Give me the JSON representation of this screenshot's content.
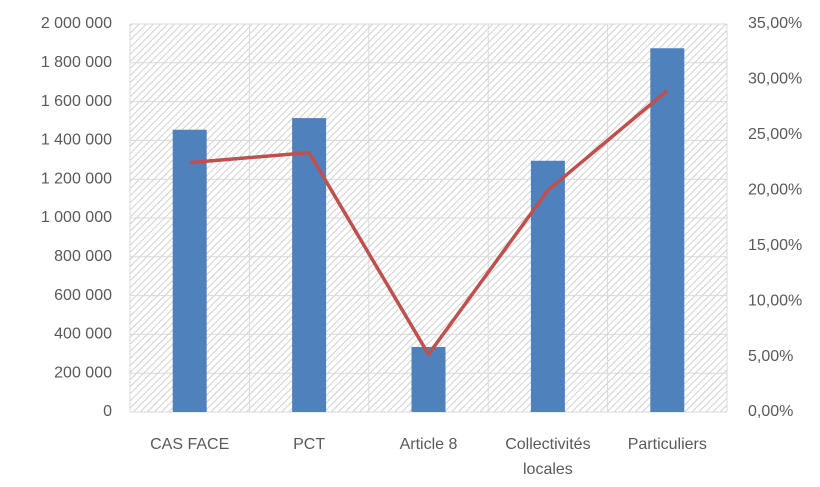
{
  "chart_data": {
    "type": "bar",
    "categories": [
      "CAS FACE",
      "PCT",
      "Article 8",
      "Collectivités locales",
      "Particuliers"
    ],
    "series": [
      {
        "type": "bar",
        "color": "#4f81bd",
        "values": [
          1455000,
          1515000,
          335000,
          1295000,
          1875000
        ]
      },
      {
        "type": "line",
        "axis": "y2",
        "color": "#c0504d",
        "values": [
          22.5,
          23.4,
          5.2,
          20.0,
          29.0
        ]
      }
    ],
    "ylim": [
      0,
      2000000
    ],
    "yticks": [
      0,
      {
        "value": 200000,
        "label": "200 000"
      },
      {
        "value": 400000,
        "label": "400 000"
      },
      {
        "value": 600000,
        "label": "600 000"
      },
      {
        "value": 800000,
        "label": "800 000"
      },
      {
        "value": 1000000,
        "label": "1 000 000"
      },
      {
        "value": 1200000,
        "label": "1 200 000"
      },
      {
        "value": 1400000,
        "label": "1 400 000"
      },
      {
        "value": 1600000,
        "label": "1 600 000"
      },
      {
        "value": 1800000,
        "label": "1 800 000"
      },
      {
        "value": 2000000,
        "label": "2 000 000"
      }
    ],
    "y2lim": [
      0,
      35
    ],
    "y2ticks": [
      {
        "value": 0,
        "label": "0,00%"
      },
      {
        "value": 5,
        "label": "5,00%"
      },
      {
        "value": 10,
        "label": "10,00%"
      },
      {
        "value": 15,
        "label": "15,00%"
      },
      {
        "value": 20,
        "label": "20,00%"
      },
      {
        "value": 25,
        "label": "25,00%"
      },
      {
        "value": 30,
        "label": "30,00%"
      },
      {
        "value": 35,
        "label": "35,00%"
      }
    ],
    "grid": true
  }
}
